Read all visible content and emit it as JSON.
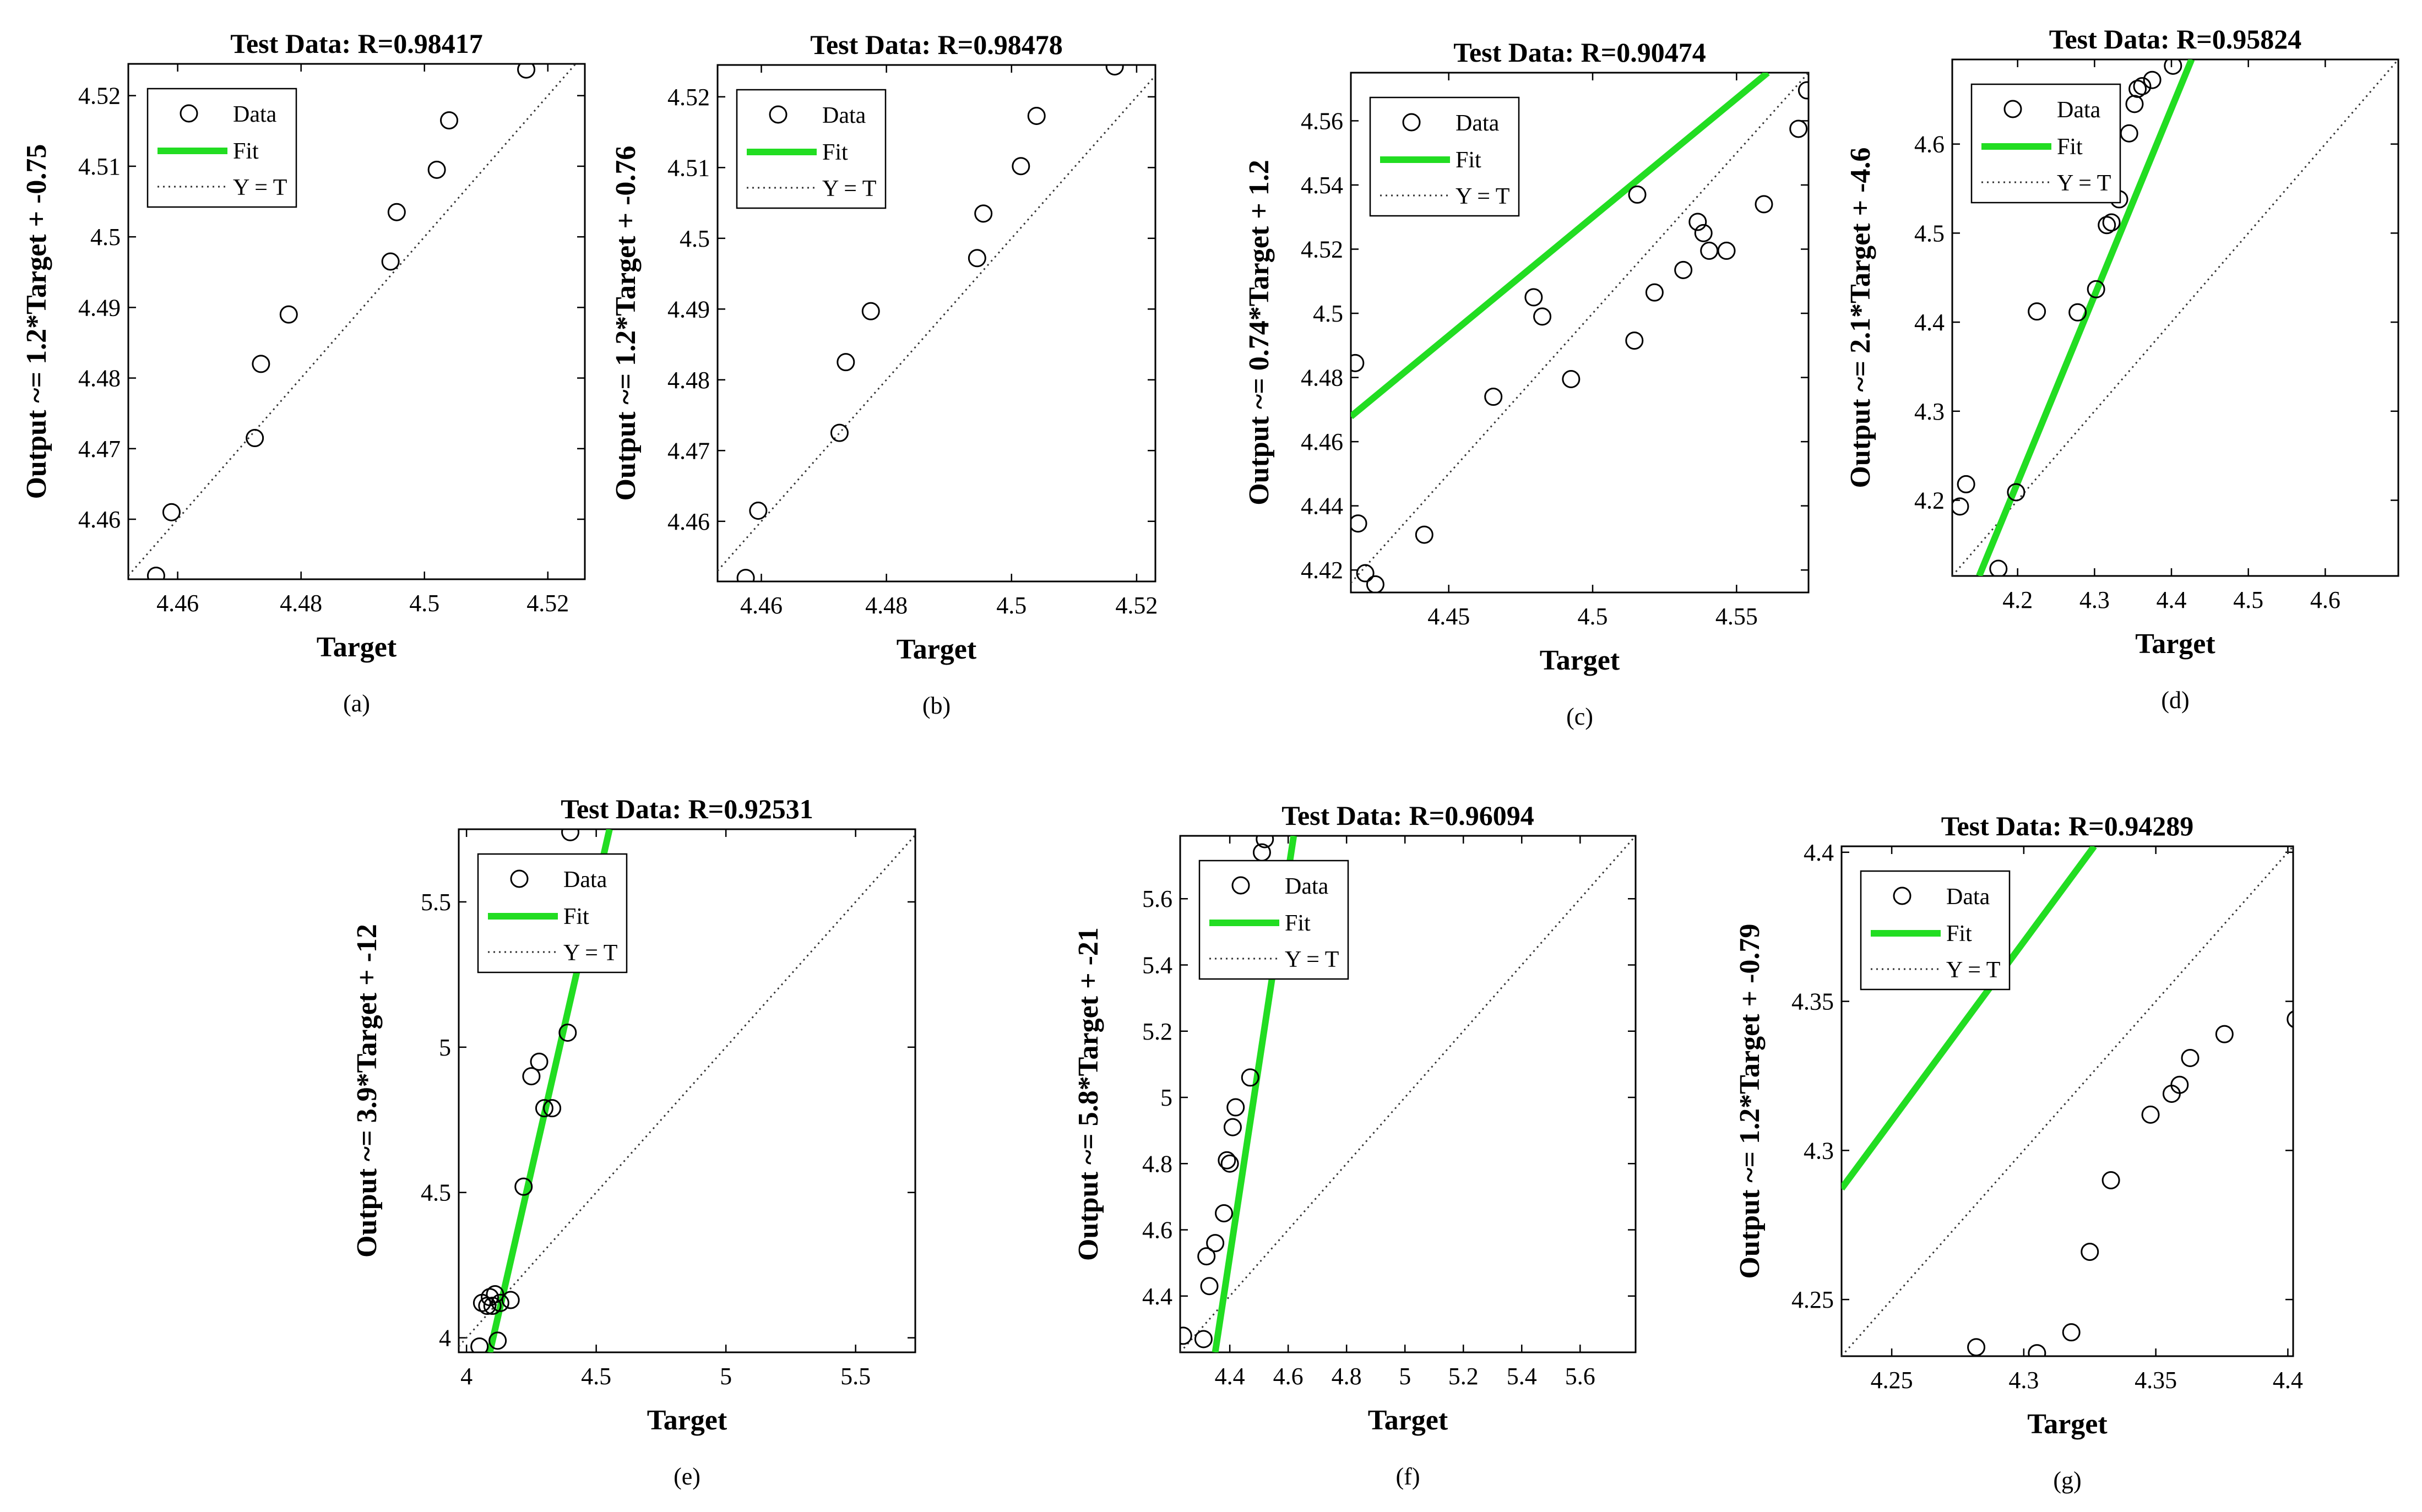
{
  "chart_data": [
    {
      "type": "scatter",
      "panel_label": "(a)",
      "title": "Test Data: R=0.98417",
      "xlabel": "Target",
      "ylabel": "Output ~= 1.2*Target + -0.75",
      "xlim": [
        4.452,
        4.526
      ],
      "ylim": [
        4.4515,
        4.5245
      ],
      "xticks": [
        "4.46",
        "4.48",
        "4.5",
        "4.52"
      ],
      "xtick_values": [
        4.46,
        4.48,
        4.5,
        4.52
      ],
      "yticks": [
        "4.46",
        "4.47",
        "4.48",
        "4.49",
        "4.5",
        "4.51",
        "4.52"
      ],
      "ytick_values": [
        4.46,
        4.47,
        4.48,
        4.49,
        4.5,
        4.51,
        4.52
      ],
      "legend": [
        "Data",
        "Fit",
        "Y = T"
      ],
      "fit": {
        "slope": 1.2,
        "intercept": -0.75
      },
      "series": [
        {
          "name": "Data",
          "x": [
            4.4565,
            4.459,
            4.4725,
            4.4735,
            4.478,
            4.4945,
            4.4955,
            4.502,
            4.504,
            4.5165
          ],
          "y": [
            4.452,
            4.461,
            4.4715,
            4.482,
            4.489,
            4.4965,
            4.5035,
            4.5095,
            4.5165,
            4.5237
          ]
        }
      ]
    },
    {
      "type": "scatter",
      "panel_label": "(b)",
      "title": "Test Data: R=0.98478",
      "xlabel": "Target",
      "ylabel": "Output ~= 1.2*Target + -0.76",
      "xlim": [
        4.453,
        4.523
      ],
      "ylim": [
        4.4515,
        4.5245
      ],
      "xticks": [
        "4.46",
        "4.48",
        "4.5",
        "4.52"
      ],
      "xtick_values": [
        4.46,
        4.48,
        4.5,
        4.52
      ],
      "yticks": [
        "4.46",
        "4.47",
        "4.48",
        "4.49",
        "4.5",
        "4.51",
        "4.52"
      ],
      "ytick_values": [
        4.46,
        4.47,
        4.48,
        4.49,
        4.5,
        4.51,
        4.52
      ],
      "legend": [
        "Data",
        "Fit",
        "Y = T"
      ],
      "fit": {
        "slope": 1.2,
        "intercept": -0.76
      },
      "series": [
        {
          "name": "Data",
          "x": [
            4.4575,
            4.4595,
            4.4725,
            4.4735,
            4.4775,
            4.4945,
            4.4955,
            4.5015,
            4.504,
            4.5165
          ],
          "y": [
            4.452,
            4.4615,
            4.4725,
            4.4825,
            4.4897,
            4.4972,
            4.5035,
            4.5102,
            4.5173,
            4.5243
          ]
        }
      ]
    },
    {
      "type": "scatter",
      "panel_label": "(c)",
      "title": "Test Data: R=0.90474",
      "xlabel": "Target",
      "ylabel": "Output ~= 0.74*Target + 1.2",
      "xlim": [
        4.416,
        4.575
      ],
      "ylim": [
        4.413,
        4.575
      ],
      "xticks": [
        "4.45",
        "4.5",
        "4.55"
      ],
      "xtick_values": [
        4.45,
        4.5,
        4.55
      ],
      "yticks": [
        "4.42",
        "4.44",
        "4.46",
        "4.48",
        "4.5",
        "4.52",
        "4.54",
        "4.56"
      ],
      "ytick_values": [
        4.42,
        4.44,
        4.46,
        4.48,
        4.5,
        4.52,
        4.54,
        4.56
      ],
      "legend": [
        "Data",
        "Fit",
        "Y = T"
      ],
      "fit": {
        "slope": 0.74,
        "intercept": 1.2
      },
      "series": [
        {
          "name": "Data",
          "x": [
            4.4175,
            4.4185,
            4.421,
            4.4245,
            4.4415,
            4.4655,
            4.4795,
            4.4825,
            4.4925,
            4.5145,
            4.5155,
            4.5215,
            4.5315,
            4.5365,
            4.5385,
            4.5405,
            4.5465,
            4.5595,
            4.5715,
            4.5745
          ],
          "y": [
            4.4845,
            4.4345,
            4.419,
            4.4155,
            4.431,
            4.474,
            4.505,
            4.499,
            4.4795,
            4.4915,
            4.537,
            4.5065,
            4.5135,
            4.5285,
            4.525,
            4.5195,
            4.5195,
            4.534,
            4.5575,
            4.5695
          ]
        }
      ]
    },
    {
      "type": "scatter",
      "panel_label": "(d)",
      "title": "Test Data: R=0.95824",
      "xlabel": "Target",
      "ylabel": "Output ~= 2.1*Target + -4.6",
      "xlim": [
        4.115,
        4.695
      ],
      "ylim": [
        4.115,
        4.695
      ],
      "xticks": [
        "4.2",
        "4.3",
        "4.4",
        "4.5",
        "4.6"
      ],
      "xtick_values": [
        4.2,
        4.3,
        4.4,
        4.5,
        4.6
      ],
      "yticks": [
        "4.2",
        "4.3",
        "4.4",
        "4.5",
        "4.6"
      ],
      "ytick_values": [
        4.2,
        4.3,
        4.4,
        4.5,
        4.6
      ],
      "legend": [
        "Data",
        "Fit",
        "Y = T"
      ],
      "fit": {
        "slope": 2.1,
        "intercept": -4.6
      },
      "series": [
        {
          "name": "Data",
          "x": [
            4.125,
            4.133,
            4.175,
            4.198,
            4.225,
            4.278,
            4.302,
            4.316,
            4.322,
            4.332,
            4.345,
            4.352,
            4.356,
            4.362,
            4.375,
            4.402
          ],
          "y": [
            4.193,
            4.218,
            4.123,
            4.209,
            4.412,
            4.411,
            4.437,
            4.509,
            4.512,
            4.538,
            4.612,
            4.645,
            4.662,
            4.665,
            4.672,
            4.688
          ]
        }
      ]
    },
    {
      "type": "scatter",
      "panel_label": "(e)",
      "title": "Test Data: R=0.92531",
      "xlabel": "Target",
      "ylabel": "Output ~= 3.9*Target + -12",
      "xlim": [
        3.97,
        5.73
      ],
      "ylim": [
        3.95,
        5.75
      ],
      "xticks": [
        "4",
        "4.5",
        "5",
        "5.5"
      ],
      "xtick_values": [
        4,
        4.5,
        5,
        5.5
      ],
      "yticks": [
        "4",
        "4.5",
        "5",
        "5.5"
      ],
      "ytick_values": [
        4,
        4.5,
        5,
        5.5
      ],
      "legend": [
        "Data",
        "Fit",
        "Y = T"
      ],
      "fit": {
        "slope": 3.9,
        "intercept": -12
      },
      "series": [
        {
          "name": "Data",
          "x": [
            4.05,
            4.06,
            4.08,
            4.09,
            4.1,
            4.11,
            4.12,
            4.13,
            4.17,
            4.22,
            4.25,
            4.28,
            4.3,
            4.33,
            4.39,
            4.4
          ],
          "y": [
            3.97,
            4.12,
            4.11,
            4.14,
            4.11,
            4.15,
            3.99,
            4.12,
            4.13,
            4.52,
            4.9,
            4.95,
            4.79,
            4.79,
            5.05,
            5.74
          ]
        }
      ]
    },
    {
      "type": "scatter",
      "panel_label": "(f)",
      "title": "Test Data: R=0.96094",
      "xlabel": "Target",
      "ylabel": "Output ~= 5.8*Target + -21",
      "xlim": [
        4.23,
        5.79
      ],
      "ylim": [
        4.23,
        5.79
      ],
      "xticks": [
        "4.4",
        "4.6",
        "4.8",
        "5",
        "5.2",
        "5.4",
        "5.6"
      ],
      "xtick_values": [
        4.4,
        4.6,
        4.8,
        5.0,
        5.2,
        5.4,
        5.6
      ],
      "yticks": [
        "4.4",
        "4.6",
        "4.8",
        "5",
        "5.2",
        "5.4",
        "5.6"
      ],
      "ytick_values": [
        4.4,
        4.6,
        4.8,
        5.0,
        5.2,
        5.4,
        5.6
      ],
      "legend": [
        "Data",
        "Fit",
        "Y = T"
      ],
      "fit": {
        "slope": 5.8,
        "intercept": -21
      },
      "series": [
        {
          "name": "Data",
          "x": [
            4.24,
            4.31,
            4.32,
            4.33,
            4.35,
            4.38,
            4.39,
            4.4,
            4.41,
            4.42,
            4.47,
            4.51,
            4.52
          ],
          "y": [
            4.28,
            4.27,
            4.52,
            4.43,
            4.56,
            4.65,
            4.81,
            4.8,
            4.91,
            4.97,
            5.06,
            5.74,
            5.78
          ]
        }
      ]
    },
    {
      "type": "scatter",
      "panel_label": "(g)",
      "title": "Test Data: R=0.94289",
      "xlabel": "Target",
      "ylabel": "Output ~= 1.2*Target + -0.79",
      "xlim": [
        4.231,
        4.402
      ],
      "ylim": [
        4.231,
        4.402
      ],
      "xticks": [
        "4.25",
        "4.3",
        "4.35",
        "4.4"
      ],
      "xtick_values": [
        4.25,
        4.3,
        4.35,
        4.4
      ],
      "yticks": [
        "4.25",
        "4.3",
        "4.35",
        "4.4"
      ],
      "ytick_values": [
        4.25,
        4.3,
        4.35,
        4.4
      ],
      "legend": [
        "Data",
        "Fit",
        "Y = T"
      ],
      "fit": {
        "slope": 1.2,
        "intercept": -0.79
      },
      "series": [
        {
          "name": "Data",
          "x": [
            4.282,
            4.305,
            4.318,
            4.325,
            4.333,
            4.348,
            4.356,
            4.359,
            4.363,
            4.376,
            4.403
          ],
          "y": [
            4.234,
            4.232,
            4.239,
            4.266,
            4.29,
            4.312,
            4.319,
            4.322,
            4.331,
            4.339,
            4.344
          ]
        }
      ]
    }
  ]
}
